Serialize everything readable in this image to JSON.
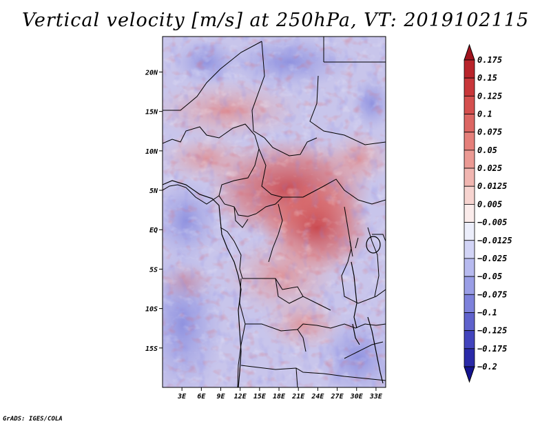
{
  "title": "Vertical velocity [m/s] at 250hPa, VT: 2019102115",
  "credit": "GrADS: IGES/COLA",
  "chart_data": {
    "type": "heatmap",
    "title": "Vertical velocity [m/s] at 250hPa, VT: 2019102115",
    "variable": "Vertical velocity",
    "units": "m/s",
    "level": "250hPa",
    "valid_time": "2019102115",
    "lon_range": [
      0,
      34.5
    ],
    "lat_range": [
      -20,
      24.5
    ],
    "x_ticks": [
      {
        "value": 3,
        "label": "3E"
      },
      {
        "value": 6,
        "label": "6E"
      },
      {
        "value": 9,
        "label": "9E"
      },
      {
        "value": 12,
        "label": "12E"
      },
      {
        "value": 15,
        "label": "15E"
      },
      {
        "value": 18,
        "label": "18E"
      },
      {
        "value": 21,
        "label": "21E"
      },
      {
        "value": 24,
        "label": "24E"
      },
      {
        "value": 27,
        "label": "27E"
      },
      {
        "value": 30,
        "label": "30E"
      },
      {
        "value": 33,
        "label": "33E"
      }
    ],
    "y_ticks": [
      {
        "value": 20,
        "label": "20N"
      },
      {
        "value": 15,
        "label": "15N"
      },
      {
        "value": 10,
        "label": "10N"
      },
      {
        "value": 5,
        "label": "5N"
      },
      {
        "value": 0,
        "label": "EQ"
      },
      {
        "value": -5,
        "label": "5S"
      },
      {
        "value": -10,
        "label": "10S"
      },
      {
        "value": -15,
        "label": "15S"
      }
    ],
    "colorbar": {
      "labels": [
        "0.175",
        "0.15",
        "0.125",
        "0.1",
        "0.075",
        "0.05",
        "0.025",
        "0.0125",
        "0.005",
        "−0.005",
        "−0.0125",
        "−0.025",
        "−0.05",
        "−0.075",
        "−0.1",
        "−0.125",
        "−0.175",
        "−0.2"
      ],
      "colors": [
        "#a0141e",
        "#b8242b",
        "#c8373a",
        "#d44f4e",
        "#dc6663",
        "#e57f7a",
        "#eb9a94",
        "#f1b6b1",
        "#f7d4d0",
        "#fbeceb",
        "#eceefb",
        "#d2d4f6",
        "#b7baef",
        "#9a9ee6",
        "#7d81db",
        "#5f62cc",
        "#4244bd",
        "#2a2aa8",
        "#14138f"
      ]
    }
  }
}
